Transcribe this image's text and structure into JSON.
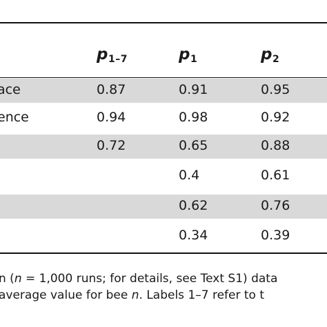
{
  "table": {
    "headers": [
      {
        "main": "",
        "sub": ""
      },
      {
        "main": "p",
        "sub": "1–7"
      },
      {
        "main": "p",
        "sub": "1"
      },
      {
        "main": "p",
        "sub": "2"
      }
    ],
    "rows": [
      {
        "label": "ace",
        "values": [
          "0.87",
          "0.91",
          "0.95"
        ],
        "shaded": true
      },
      {
        "label": "ence",
        "values": [
          "0.94",
          "0.98",
          "0.92"
        ],
        "shaded": false
      },
      {
        "label": "",
        "values": [
          "0.72",
          "0.65",
          "0.88"
        ],
        "shaded": true
      },
      {
        "label": "",
        "values": [
          "",
          "0.4",
          "0.61"
        ],
        "shaded": false
      },
      {
        "label": "",
        "values": [
          "",
          "0.62",
          "0.76"
        ],
        "shaded": true
      },
      {
        "label": "",
        "values": [
          "",
          "0.34",
          "0.39"
        ],
        "shaded": false
      }
    ]
  },
  "caption": {
    "line1_pre": "n (",
    "line1_n": "n",
    "line1_post": " = 1,000 runs; for details, see Text S1) data",
    "line2_pre": " average value for bee ",
    "line2_n": "n",
    "line2_post": ". Labels 1–7 refer to t"
  }
}
